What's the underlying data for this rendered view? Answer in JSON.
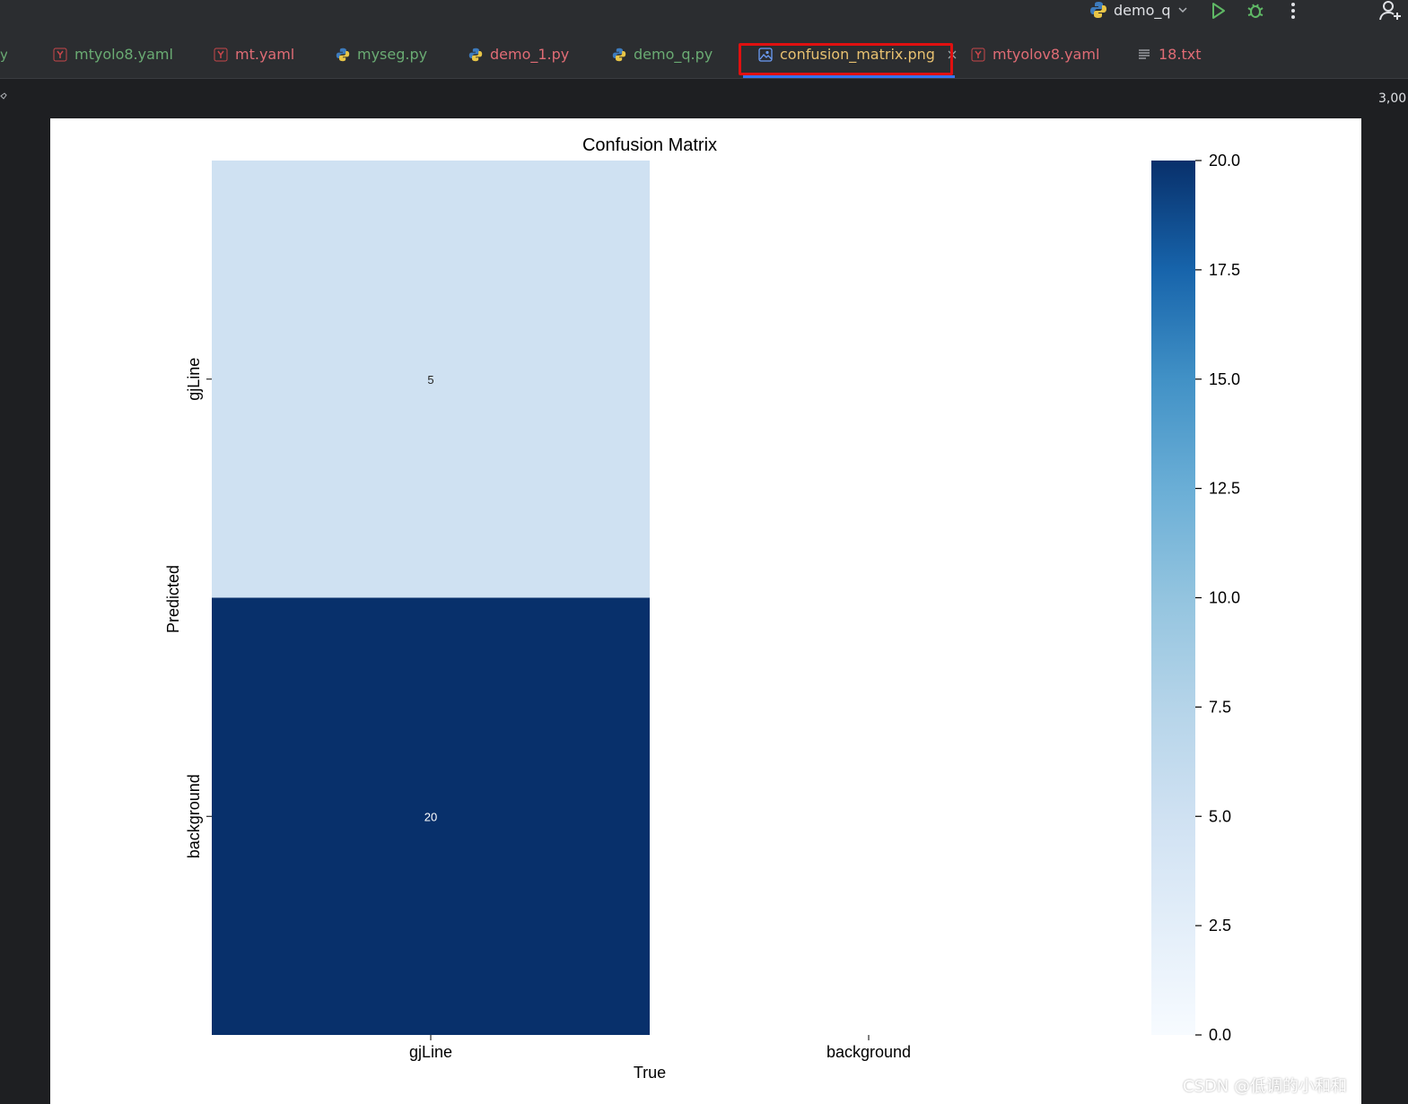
{
  "run_config": {
    "label": "demo_q"
  },
  "tabs": [
    {
      "label": "mtyolo8.yaml",
      "icon": "yaml-icon",
      "color": "#6aab73"
    },
    {
      "label": "mt.yaml",
      "icon": "yaml-icon",
      "color": "#e06c75"
    },
    {
      "label": "myseg.py",
      "icon": "python-icon",
      "color": "#6aab73"
    },
    {
      "label": "demo_1.py",
      "icon": "python-icon",
      "color": "#e06c75"
    },
    {
      "label": "demo_q.py",
      "icon": "python-icon",
      "color": "#6aab73"
    },
    {
      "label": "confusion_matrix.png",
      "icon": "image-icon",
      "color": "#e8c170",
      "active": true
    },
    {
      "label": "mtyolov8.yaml",
      "icon": "yaml-icon",
      "color": "#e06c75"
    },
    {
      "label": "18.txt",
      "icon": "text-icon",
      "color": "#e06c75"
    }
  ],
  "editor": {
    "zoom_info": "3,00"
  },
  "chart_data": {
    "type": "heatmap",
    "title": "Confusion Matrix",
    "xlabel": "True",
    "ylabel": "Predicted",
    "x_categories": [
      "gjLine",
      "background"
    ],
    "y_categories": [
      "gjLine",
      "background"
    ],
    "values": [
      [
        5,
        null
      ],
      [
        20,
        null
      ]
    ],
    "colormap": "Blues",
    "colorbar": {
      "min": 0.0,
      "max": 20.0,
      "ticks": [
        "0.0",
        "2.5",
        "5.0",
        "7.5",
        "10.0",
        "12.5",
        "15.0",
        "17.5",
        "20.0"
      ]
    }
  },
  "watermark": "CSDN @低调的小和和"
}
